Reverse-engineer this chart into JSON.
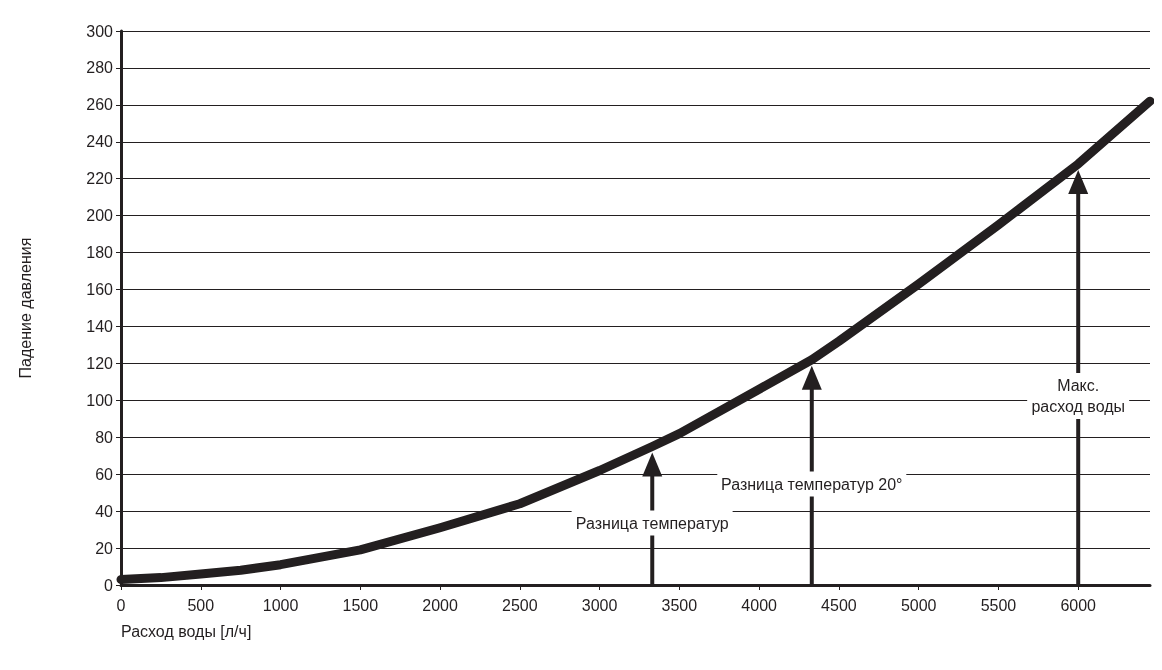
{
  "chart_data": {
    "type": "line",
    "xlabel": "Расход воды [л/ч]",
    "ylabel": "Падение давления",
    "x": [
      0,
      250,
      500,
      750,
      1000,
      1500,
      2000,
      2500,
      3000,
      3330,
      3500,
      4000,
      4330,
      4500,
      5000,
      5500,
      6000,
      6450
    ],
    "series": [
      {
        "color": "#231f20",
        "values": [
          3,
          4,
          6,
          8,
          11,
          19,
          31,
          44,
          62,
          75,
          82,
          106,
          122,
          132,
          163,
          195,
          228,
          262
        ]
      }
    ],
    "xlim": [
      0,
      6450
    ],
    "xticks": [
      0,
      500,
      1000,
      1500,
      2000,
      2500,
      3000,
      3500,
      4000,
      4500,
      5000,
      5500,
      6000
    ],
    "ylim": [
      0,
      300
    ],
    "yticks": [
      0,
      20,
      40,
      60,
      80,
      100,
      120,
      140,
      160,
      180,
      200,
      220,
      240,
      260,
      280,
      300
    ],
    "grid": "y",
    "line_style": "solid",
    "ref_lines": [
      {
        "axis": "x",
        "value": 3330,
        "label": "Разница температур",
        "color": "#231f20"
      },
      {
        "axis": "x",
        "value": 4330,
        "label": "Разница температур 20°",
        "color": "#231f20"
      },
      {
        "axis": "x",
        "value": 6000,
        "label": "Макс.\nрасход воды",
        "color": "#231f20"
      }
    ]
  }
}
